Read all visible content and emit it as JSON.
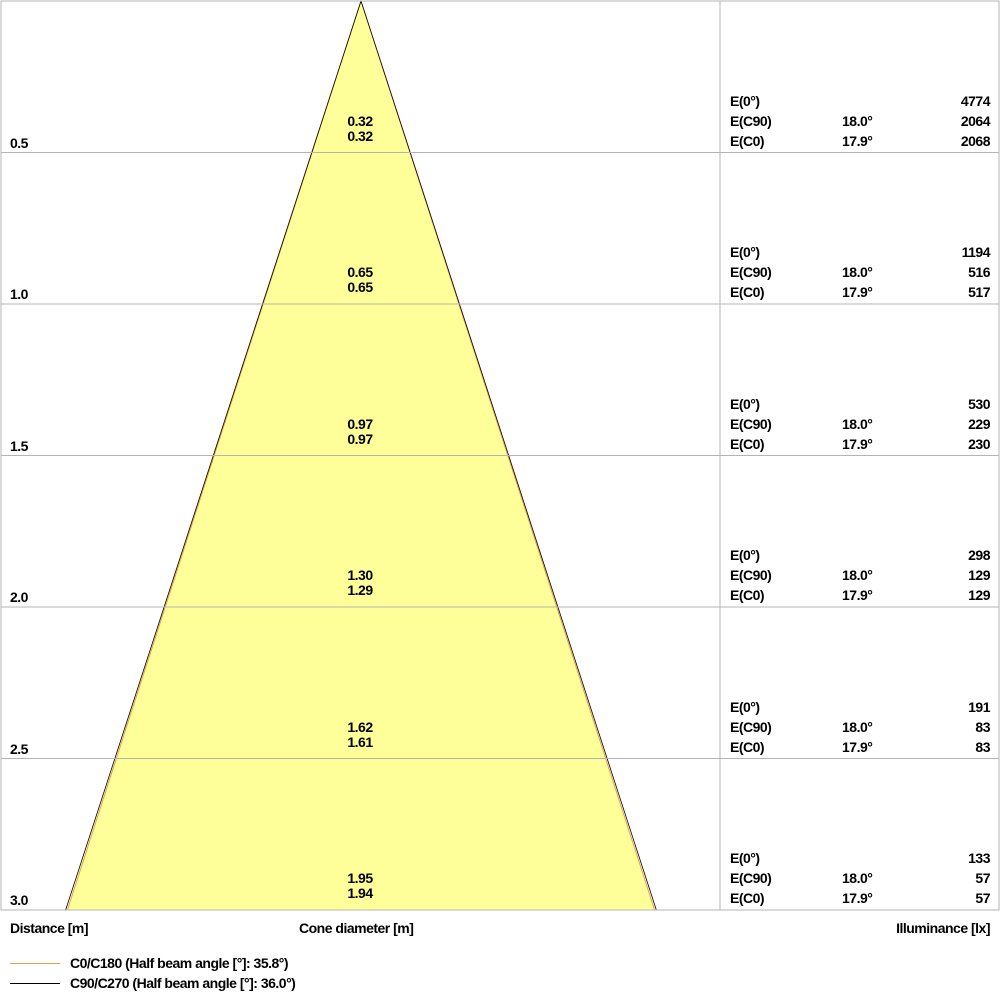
{
  "chart_data": {
    "type": "cone-diagram",
    "rows": [
      {
        "distance": "0.5",
        "cone_c0": "0.32",
        "cone_c90": "0.32",
        "e0_label": "E(0°)",
        "e0": "4774",
        "ec90_label": "E(C90)",
        "ec90_angle": "18.0°",
        "ec90": "2064",
        "ec0_label": "E(C0)",
        "ec0_angle": "17.9°",
        "ec0": "2068"
      },
      {
        "distance": "1.0",
        "cone_c0": "0.65",
        "cone_c90": "0.65",
        "e0_label": "E(0°)",
        "e0": "1194",
        "ec90_label": "E(C90)",
        "ec90_angle": "18.0°",
        "ec90": "516",
        "ec0_label": "E(C0)",
        "ec0_angle": "17.9°",
        "ec0": "517"
      },
      {
        "distance": "1.5",
        "cone_c0": "0.97",
        "cone_c90": "0.97",
        "e0_label": "E(0°)",
        "e0": "530",
        "ec90_label": "E(C90)",
        "ec90_angle": "18.0°",
        "ec90": "229",
        "ec0_label": "E(C0)",
        "ec0_angle": "17.9°",
        "ec0": "230"
      },
      {
        "distance": "2.0",
        "cone_c0": "1.30",
        "cone_c90": "1.29",
        "e0_label": "E(0°)",
        "e0": "298",
        "ec90_label": "E(C90)",
        "ec90_angle": "18.0°",
        "ec90": "129",
        "ec0_label": "E(C0)",
        "ec0_angle": "17.9°",
        "ec0": "129"
      },
      {
        "distance": "2.5",
        "cone_c0": "1.62",
        "cone_c90": "1.61",
        "e0_label": "E(0°)",
        "e0": "191",
        "ec90_label": "E(C90)",
        "ec90_angle": "18.0°",
        "ec90": "83",
        "ec0_label": "E(C0)",
        "ec0_angle": "17.9°",
        "ec0": "83"
      },
      {
        "distance": "3.0",
        "cone_c0": "1.95",
        "cone_c90": "1.94",
        "e0_label": "E(0°)",
        "e0": "133",
        "ec90_label": "E(C90)",
        "ec90_angle": "18.0°",
        "ec90": "57",
        "ec0_label": "E(C0)",
        "ec0_angle": "17.9°",
        "ec0": "57"
      }
    ],
    "max_distance": 3.0,
    "half_beam_angle_c0": 35.8,
    "half_beam_angle_c90": 36.0,
    "xlabel_left": "Distance [m]",
    "xlabel_center": "Cone diameter [m]",
    "xlabel_right": "Illuminance [lx]",
    "legend": [
      {
        "label": "C0/C180 (Half beam angle [°]: 35.8°)",
        "color": "#e8a040"
      },
      {
        "label": "C90/C270 (Half beam angle [°]: 36.0°)",
        "color": "#000000"
      }
    ],
    "cone_fill": "#ffff99",
    "grid_color": "#b4b4b4"
  }
}
